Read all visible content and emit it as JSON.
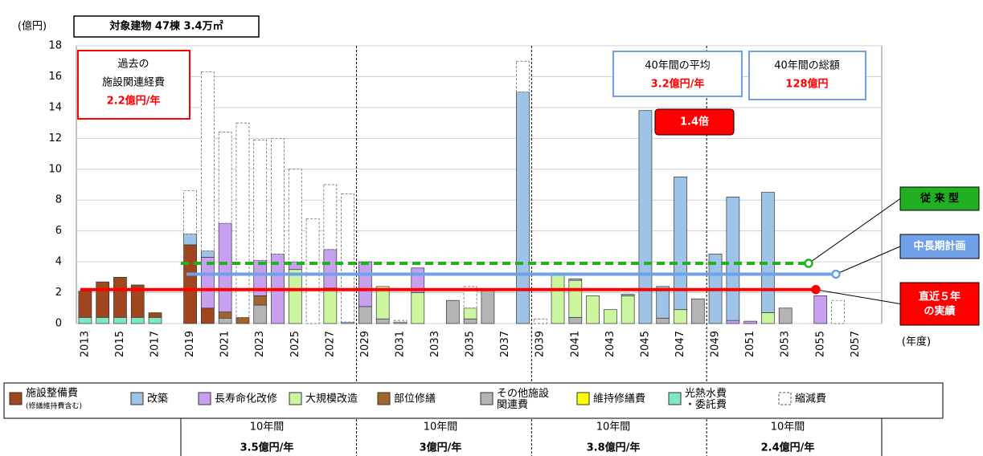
{
  "chart_data": {
    "type": "bar",
    "stacked": true,
    "title": "対象建物 47棟 3.4万㎡",
    "y_unit": "(億円)",
    "x_unit": "(年度)",
    "categories": [
      "2013",
      null,
      "2015",
      null,
      "2017",
      null,
      "2019",
      null,
      "2021",
      null,
      "2023",
      null,
      "2025",
      null,
      "2027",
      null,
      "2029",
      null,
      "2031",
      null,
      "2033",
      null,
      "2035",
      null,
      "2037",
      null,
      "2039",
      null,
      "2041",
      null,
      "2043",
      null,
      "2045",
      null,
      "2047",
      null,
      "2049",
      null,
      "2051",
      null,
      "2053",
      null,
      "2055",
      null,
      "2057",
      null
    ],
    "series": [
      {
        "name": "施設整備費",
        "note": "(修繕維持費含む)",
        "color": "#a0461e",
        "values": [
          1.7,
          2.3,
          2.6,
          2.1,
          0.3,
          0,
          5.1,
          1.0,
          0,
          0,
          0,
          0,
          0,
          0,
          0,
          0,
          0,
          0,
          0,
          0,
          0,
          0,
          0,
          0,
          0,
          0,
          0,
          0,
          0,
          0,
          0,
          0,
          0,
          0,
          0,
          0,
          0,
          0,
          0,
          0,
          0,
          0,
          0,
          0,
          0,
          0
        ]
      },
      {
        "name": "改築",
        "color": "#9dc3e6",
        "values": [
          0,
          0,
          0,
          0,
          0,
          0,
          0.7,
          0.4,
          0,
          0,
          0,
          0,
          0,
          0,
          0,
          0.1,
          0,
          0,
          0,
          0,
          0,
          0,
          0,
          0,
          0,
          15.0,
          0,
          0,
          0.1,
          0,
          0,
          0.1,
          13.8,
          2.05,
          8.6,
          0,
          4.5,
          8.0,
          0,
          7.8,
          0,
          0,
          0,
          0,
          0,
          0
        ]
      },
      {
        "name": "長寿命化改修",
        "color": "#c8a0f0",
        "values": [
          0,
          0,
          0,
          0,
          0,
          0,
          0,
          3.3,
          5.75,
          0,
          2.3,
          4.5,
          0.5,
          0,
          2.5,
          0,
          2.9,
          0,
          0,
          1.6,
          0,
          0,
          0,
          0,
          0,
          0,
          0,
          0,
          0,
          0,
          0,
          0,
          0,
          0,
          0,
          0,
          0,
          0.2,
          0.15,
          0,
          0,
          0,
          1.8,
          0,
          0,
          0
        ]
      },
      {
        "name": "大規模改造",
        "color": "#ccf5a0",
        "values": [
          0,
          0,
          0,
          0,
          0,
          0,
          0,
          0,
          0,
          0,
          0,
          0,
          3.5,
          0,
          2.3,
          0,
          0,
          2.1,
          0,
          2.0,
          0,
          0,
          0.7,
          0,
          0,
          0,
          0,
          3.2,
          2.4,
          1.8,
          0.9,
          1.8,
          0,
          0,
          0.9,
          0,
          0,
          0,
          0,
          0.7,
          0,
          0,
          0,
          0,
          0,
          0
        ]
      },
      {
        "name": "部位修繕",
        "color": "#a0642d",
        "values": [
          0,
          0,
          0,
          0,
          0,
          0,
          0,
          0,
          0.4,
          0.4,
          0.6,
          0,
          0,
          0,
          0,
          0,
          0,
          0,
          0,
          0,
          0,
          0,
          0,
          0,
          0,
          0,
          0,
          0,
          0,
          0,
          0,
          0,
          0,
          0,
          0,
          0,
          0,
          0,
          0,
          0,
          0,
          0,
          0,
          0,
          0,
          0
        ]
      },
      {
        "name": "その他施設\n関連費",
        "color": "#b4b4b4",
        "values": [
          0,
          0,
          0,
          0,
          0,
          0,
          0,
          0,
          0.35,
          0,
          1.2,
          0,
          0,
          0,
          0,
          0,
          1.1,
          0.3,
          0.1,
          0,
          0,
          1.5,
          0.3,
          2.2,
          0,
          0,
          0,
          0,
          0.4,
          0,
          0,
          0,
          0,
          0.35,
          0,
          1.6,
          0,
          0,
          0,
          0,
          1.0,
          0,
          0,
          0,
          0,
          0
        ]
      },
      {
        "name": "維持修繕費",
        "color": "#ffff00",
        "values": [
          0,
          0,
          0,
          0,
          0,
          0,
          0,
          0,
          0,
          0,
          0,
          0,
          0,
          0,
          0,
          0,
          0,
          0,
          0,
          0,
          0,
          0,
          0,
          0,
          0,
          0,
          0,
          0,
          0,
          0,
          0,
          0,
          0,
          0,
          0,
          0,
          0,
          0,
          0,
          0,
          0,
          0,
          0,
          0,
          0,
          0
        ]
      },
      {
        "name": "光熱水費\n・委託費",
        "color": "#80e8c0",
        "values": [
          0.4,
          0.4,
          0.4,
          0.4,
          0.4,
          0,
          0,
          0,
          0,
          0,
          0,
          0,
          0,
          0,
          0,
          0,
          0,
          0,
          0,
          0,
          0,
          0,
          0,
          0,
          0,
          0,
          0,
          0,
          0,
          0,
          0,
          0,
          0,
          0,
          0,
          0,
          0,
          0,
          0,
          0,
          0,
          0,
          0,
          0,
          0,
          0
        ]
      },
      {
        "name": "縮減費",
        "color": "#ffffff",
        "dashed": true,
        "values": [
          0,
          0,
          0,
          0,
          0,
          0,
          2.8,
          11.6,
          5.9,
          12.6,
          7.8,
          7.5,
          6.0,
          6.8,
          4.2,
          8.3,
          0,
          0,
          0.1,
          0,
          0,
          0,
          1.4,
          0,
          0,
          2.0,
          0.3,
          0,
          0,
          0,
          0,
          0,
          0,
          0,
          0,
          0,
          0,
          0,
          0,
          0,
          0,
          0,
          0,
          1.5,
          0,
          0
        ]
      }
    ],
    "ylim": [
      0,
      18
    ],
    "yticks": [
      0,
      2,
      4,
      6,
      8,
      10,
      12,
      14,
      16,
      18
    ],
    "grid": true,
    "reference_lines": [
      {
        "name": "従 来 型",
        "value": 3.9,
        "color": "#22b022",
        "text_color": "#000000",
        "dashed": true
      },
      {
        "name": "中長期計画",
        "value": 3.2,
        "color": "#6fa0e8",
        "text_color": "#ffffff"
      },
      {
        "name": "直近５年\nの実績",
        "value": 2.2,
        "color": "#ff0000",
        "text_color": "#ffffff"
      }
    ],
    "annotations": {
      "past_label": "過去の\n施設関連経費",
      "past_value": "2.2億円/年",
      "avg_label": "40年間の平均",
      "avg_value": "3.2億円/年",
      "total_label": "40年間の総額",
      "total_value": "128億円",
      "ratio": "1.4倍"
    },
    "decades": [
      {
        "label": "10年間",
        "value": "3.5億円/年"
      },
      {
        "label": "10年間",
        "value": "3億円/年"
      },
      {
        "label": "10年間",
        "value": "3.8億円/年"
      },
      {
        "label": "10年間",
        "value": "2.4億円/年"
      }
    ]
  }
}
